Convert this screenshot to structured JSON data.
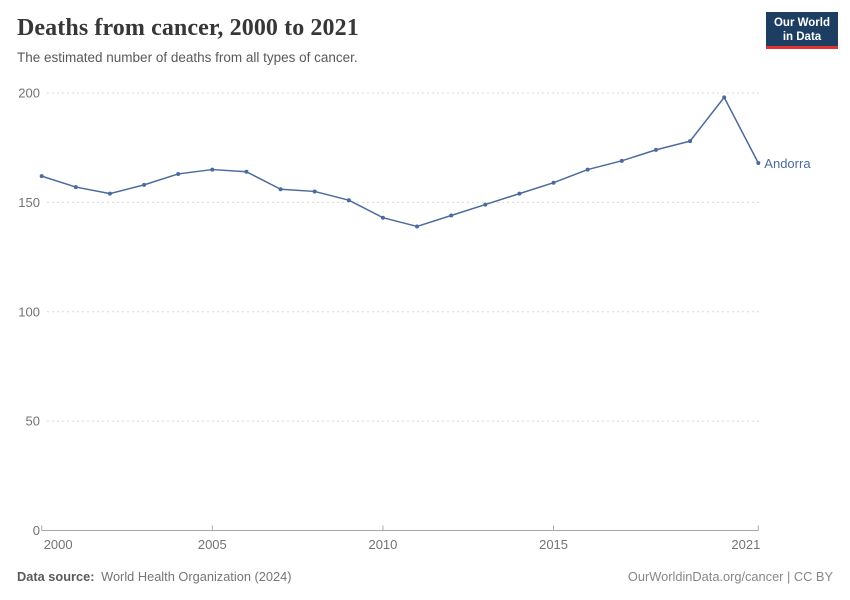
{
  "header": {
    "title": "Deaths from cancer, 2000 to 2021",
    "subtitle": "The estimated number of deaths from all types of cancer."
  },
  "logo": {
    "line1": "Our World",
    "line2": "in Data",
    "bg_color": "#1d3d63",
    "bar_color": "#e0332b"
  },
  "chart_data": {
    "type": "line",
    "title": "Deaths from cancer, 2000 to 2021",
    "xlabel": "",
    "ylabel": "",
    "x": [
      2000,
      2001,
      2002,
      2003,
      2004,
      2005,
      2006,
      2007,
      2008,
      2009,
      2010,
      2011,
      2012,
      2013,
      2014,
      2015,
      2016,
      2017,
      2018,
      2019,
      2020,
      2021
    ],
    "series": [
      {
        "name": "Andorra",
        "color": "#4C6A9C",
        "values": [
          162,
          157,
          154,
          158,
          163,
          165,
          164,
          156,
          155,
          151,
          143,
          139,
          144,
          149,
          154,
          159,
          165,
          169,
          174,
          178,
          198,
          168
        ]
      }
    ],
    "xlim": [
      2000,
      2021
    ],
    "ylim": [
      0,
      200
    ],
    "yticks": [
      0,
      50,
      100,
      150,
      200
    ],
    "xticks": [
      2000,
      2005,
      2010,
      2015,
      2021
    ],
    "grid": "horizontal-dashed",
    "legend_position": "end-of-line",
    "end_label": "Andorra",
    "colors": {
      "grid": "#d9d9d9",
      "axis": "#a8a8a8",
      "tick_text": "#737373"
    }
  },
  "footer": {
    "source_label": "Data source:",
    "source_value": "World Health Organization (2024)",
    "credit": "OurWorldinData.org/cancer | CC BY"
  }
}
